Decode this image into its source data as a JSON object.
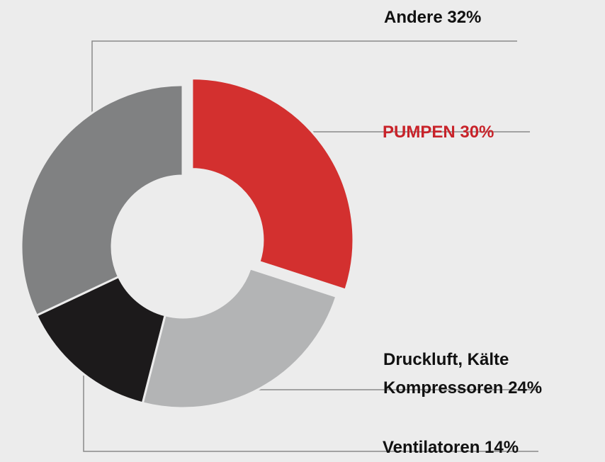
{
  "chart_data": {
    "type": "donut",
    "categories": [
      "PUMPEN",
      "Druckluft, Kälte Kompressoren",
      "Ventilatoren",
      "Andere"
    ],
    "values": [
      30,
      24,
      14,
      32
    ],
    "value_labels": [
      "30%",
      "24%",
      "14%",
      "32%"
    ],
    "colors": [
      "#d3302f",
      "#b3b4b5",
      "#1c1a1b",
      "#808182"
    ],
    "label_colors": [
      "#c8232a",
      "#111111",
      "#111111",
      "#111111"
    ]
  }
}
